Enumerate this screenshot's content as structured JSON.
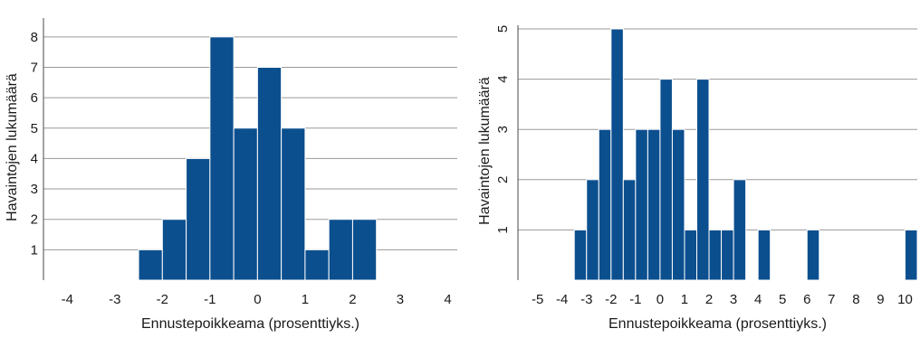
{
  "colors": {
    "bar": "#0b4f8f",
    "bar_edge": "#ffffff",
    "grid": "#9a9a9a"
  },
  "chart_data": [
    {
      "type": "bar",
      "bin_width": 0.5,
      "x": [
        -2.25,
        -1.75,
        -1.25,
        -0.75,
        -0.25,
        0.25,
        0.75,
        1.25,
        1.75,
        2.25
      ],
      "values": [
        1,
        2,
        4,
        8,
        5,
        7,
        5,
        1,
        2,
        2
      ],
      "xlabel": "Ennustepoikkeama (prosenttiyks.)",
      "ylabel": "Havaintojen lukumäärä",
      "xlim": [
        -4.5,
        4.2
      ],
      "ylim": [
        0,
        8.5
      ],
      "xticks": [
        -4,
        -3,
        -2,
        -1,
        0,
        1,
        2,
        3,
        4
      ],
      "yticks": [
        1,
        2,
        3,
        4,
        5,
        6,
        7,
        8
      ],
      "ytick_rotate": false,
      "grid": true
    },
    {
      "type": "bar",
      "bin_width": 0.5,
      "x": [
        -3.25,
        -2.75,
        -2.25,
        -1.75,
        -1.25,
        -0.75,
        -0.25,
        0.25,
        0.75,
        1.25,
        1.75,
        2.25,
        2.75,
        3.25,
        4.25,
        6.25,
        10.25
      ],
      "values": [
        1,
        2,
        3,
        5,
        2,
        3,
        3,
        4,
        3,
        1,
        4,
        1,
        1,
        2,
        1,
        1,
        1
      ],
      "xlabel": "Ennustepoikkeama (prosenttiyks.)",
      "ylabel": "Havaintojen lukumäärä",
      "xlim": [
        -5.8,
        10.5
      ],
      "ylim": [
        0,
        5
      ],
      "xticks": [
        -5,
        -4,
        -3,
        -2,
        -1,
        0,
        1,
        2,
        3,
        4,
        5,
        6,
        7,
        8,
        9,
        10
      ],
      "yticks": [
        1,
        2,
        3,
        4,
        5
      ],
      "ytick_rotate": true,
      "grid": true
    }
  ]
}
